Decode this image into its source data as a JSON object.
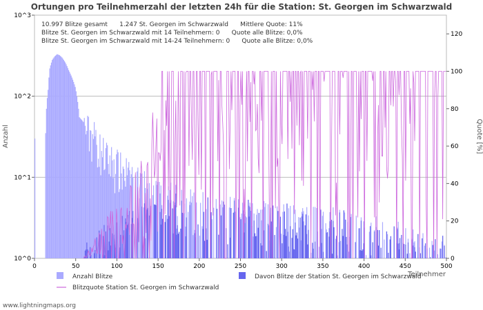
{
  "chart_data": {
    "type": "bar",
    "title": "Ortungen pro Teilnehmerzahl der letzten 24h für die Station: St. Georgen im Schwarzwald",
    "xlabel": "Teilnehmer",
    "ylabel_left": "Anzahl",
    "ylabel_right": "Quote [%]",
    "xlim": [
      0,
      500
    ],
    "x_ticks": [
      "0",
      "50",
      "100",
      "150",
      "200",
      "250",
      "300",
      "350",
      "400",
      "450",
      "500"
    ],
    "ylim_left_log": [
      1,
      1000
    ],
    "y_ticks_left": [
      "10^0",
      "10^1",
      "10^2",
      "10^3"
    ],
    "ylim_right": [
      0,
      130
    ],
    "y_ticks_right": [
      "0",
      "20",
      "40",
      "60",
      "80",
      "100",
      "120"
    ],
    "info_lines": [
      "10.997 Blitze gesamt      1.247 St. Georgen im Schwarzwald      Mittlere Quote: 11%",
      "Blitze St. Georgen im Schwarzwald mit 14 Teilnehmern: 0      Quote alle Blitze: 0,0%",
      "Blitze St. Georgen im Schwarzwald mit 14-24 Teilnehmern: 0      Quote alle Blitze: 0,0%"
    ],
    "legend": [
      {
        "label": "Anzahl Blitze",
        "color": "#aaaaff",
        "kind": "box"
      },
      {
        "label": "Davon Blitze der Station St. Georgen im Schwarzwald",
        "color": "#6666ee",
        "kind": "box"
      },
      {
        "label": "Blitzquote Station St. Georgen im Schwarzwald",
        "color": "#cc66dd",
        "kind": "line"
      }
    ],
    "series_anchors": {
      "total_envelope": [
        [
          1,
          30
        ],
        [
          2,
          0
        ],
        [
          13,
          0
        ],
        [
          15,
          70
        ],
        [
          17,
          120
        ],
        [
          19,
          220
        ],
        [
          22,
          280
        ],
        [
          25,
          310
        ],
        [
          28,
          330
        ],
        [
          31,
          320
        ],
        [
          34,
          300
        ],
        [
          38,
          260
        ],
        [
          42,
          210
        ],
        [
          46,
          170
        ],
        [
          50,
          130
        ],
        [
          55,
          55
        ],
        [
          60,
          48
        ],
        [
          65,
          42
        ],
        [
          70,
          38
        ],
        [
          75,
          34
        ],
        [
          80,
          25
        ],
        [
          85,
          22
        ],
        [
          90,
          18
        ],
        [
          95,
          18
        ],
        [
          100,
          16
        ],
        [
          105,
          14
        ],
        [
          110,
          13
        ],
        [
          115,
          11
        ],
        [
          120,
          10
        ],
        [
          130,
          9
        ],
        [
          140,
          8
        ],
        [
          150,
          7
        ],
        [
          160,
          6
        ],
        [
          170,
          6
        ],
        [
          180,
          5
        ],
        [
          200,
          5
        ],
        [
          220,
          4
        ],
        [
          250,
          4
        ],
        [
          280,
          3.5
        ],
        [
          300,
          3.5
        ],
        [
          330,
          3
        ],
        [
          360,
          3
        ],
        [
          400,
          2.5
        ],
        [
          440,
          2
        ],
        [
          470,
          1.5
        ],
        [
          500,
          1.3
        ]
      ],
      "station_envelope": [
        [
          60,
          1
        ],
        [
          70,
          1.1
        ],
        [
          80,
          1.5
        ],
        [
          90,
          1.8
        ],
        [
          100,
          2
        ],
        [
          110,
          2.3
        ],
        [
          120,
          2.6
        ],
        [
          130,
          3
        ],
        [
          140,
          3.2
        ],
        [
          150,
          3.5
        ],
        [
          160,
          4
        ],
        [
          170,
          4.5
        ],
        [
          180,
          4.5
        ],
        [
          200,
          4
        ],
        [
          220,
          4
        ],
        [
          250,
          4
        ],
        [
          280,
          3.5
        ],
        [
          300,
          3.5
        ],
        [
          330,
          3
        ],
        [
          360,
          3
        ],
        [
          400,
          2.5
        ],
        [
          440,
          2
        ],
        [
          470,
          1.5
        ],
        [
          500,
          1.3
        ]
      ],
      "quote_envelope": [
        [
          60,
          0
        ],
        [
          70,
          5
        ],
        [
          80,
          10
        ],
        [
          90,
          15
        ],
        [
          100,
          18
        ],
        [
          110,
          22
        ],
        [
          120,
          28
        ],
        [
          130,
          35
        ],
        [
          140,
          45
        ],
        [
          150,
          55
        ],
        [
          160,
          65
        ],
        [
          170,
          75
        ],
        [
          180,
          80
        ],
        [
          190,
          85
        ],
        [
          200,
          88
        ],
        [
          220,
          90
        ],
        [
          250,
          92
        ],
        [
          300,
          93
        ],
        [
          350,
          95
        ],
        [
          400,
          96
        ],
        [
          450,
          98
        ],
        [
          500,
          100
        ]
      ]
    }
  },
  "footer": "www.lightningmaps.org"
}
